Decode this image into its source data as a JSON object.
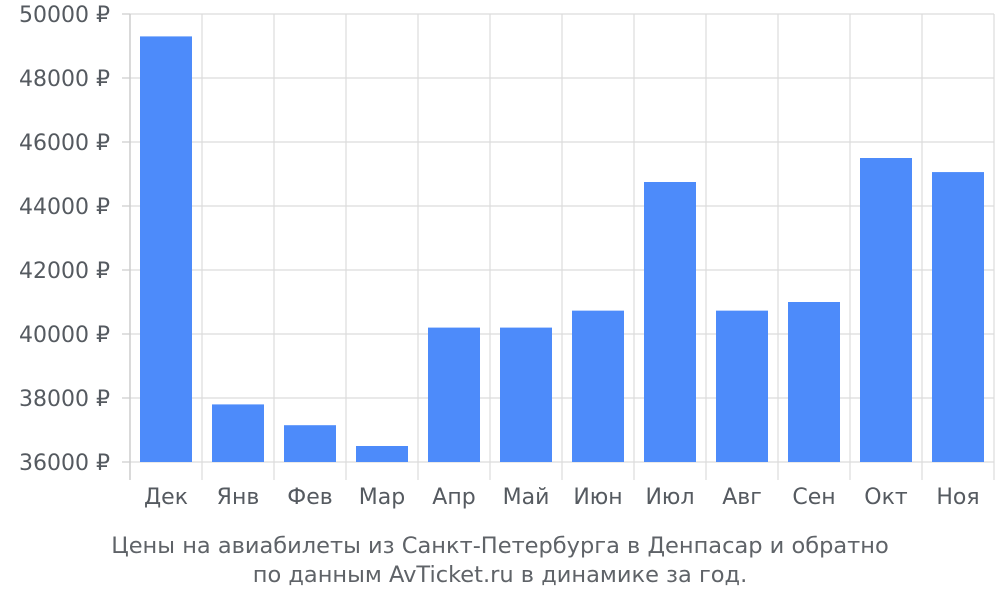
{
  "chart_data": {
    "type": "bar",
    "categories": [
      "Дек",
      "Янв",
      "Фев",
      "Мар",
      "Апр",
      "Май",
      "Июн",
      "Июл",
      "Авг",
      "Сен",
      "Окт",
      "Ноя"
    ],
    "values": [
      49300,
      37800,
      37150,
      36500,
      40200,
      40200,
      40730,
      44750,
      40730,
      41000,
      45500,
      45060
    ],
    "ylim": [
      36000,
      50000
    ],
    "yticks": [
      36000,
      38000,
      40000,
      42000,
      44000,
      46000,
      48000,
      50000
    ],
    "ytick_labels": [
      "36000 ₽",
      "38000 ₽",
      "40000 ₽",
      "42000 ₽",
      "44000 ₽",
      "46000 ₽",
      "48000 ₽",
      "50000 ₽"
    ],
    "grid": true,
    "bar_color": "#4d8bfa"
  },
  "caption": {
    "line1": "Цены на авиабилеты из Санкт-Петербурга в Денпасар и обратно",
    "line2": "по данным AvTicket.ru в динамике за год."
  }
}
